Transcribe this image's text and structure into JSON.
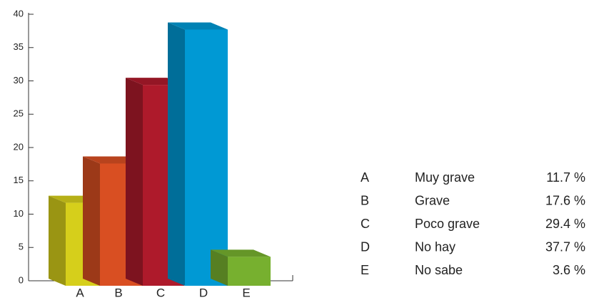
{
  "chart_data": {
    "type": "bar",
    "categories": [
      "A",
      "B",
      "C",
      "D",
      "E"
    ],
    "values": [
      11.7,
      17.6,
      29.4,
      37.7,
      3.6
    ],
    "value_labels": [
      "11.7 %",
      "17.6 %",
      "29.4 %",
      "37.7 %",
      "3.6 %"
    ],
    "category_names": [
      "Muy grave",
      "Grave",
      "Poco grave",
      "No hay",
      "No sabe"
    ],
    "colors": [
      "#d6cf1b",
      "#d94f22",
      "#ae1a2b",
      "#0099d4",
      "#77b02f"
    ],
    "ylim": [
      0,
      40
    ],
    "yticks": [
      0,
      5,
      10,
      15,
      20,
      25,
      30,
      35,
      40
    ]
  }
}
